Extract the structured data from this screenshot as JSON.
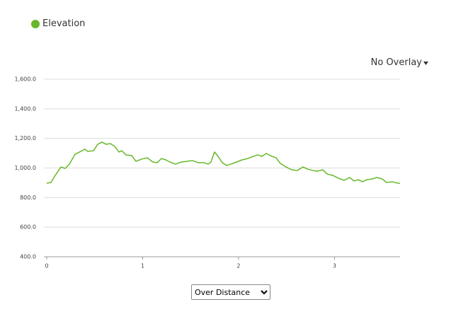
{
  "chart_data": {
    "type": "line",
    "series": [
      {
        "name": "Elevation",
        "color": "#66b82a",
        "x": [
          0,
          0.044,
          0.089,
          0.148,
          0.192,
          0.236,
          0.295,
          0.354,
          0.399,
          0.428,
          0.487,
          0.531,
          0.576,
          0.62,
          0.664,
          0.708,
          0.753,
          0.782,
          0.827,
          0.886,
          0.93,
          0.989,
          1.048,
          1.107,
          1.151,
          1.196,
          1.24,
          1.284,
          1.343,
          1.402,
          1.461,
          1.52,
          1.579,
          1.638,
          1.683,
          1.712,
          1.749,
          1.786,
          1.83,
          1.875,
          1.919,
          1.978,
          2.037,
          2.096,
          2.155,
          2.199,
          2.244,
          2.288,
          2.347,
          2.391,
          2.435,
          2.494,
          2.553,
          2.612,
          2.672,
          2.716,
          2.775,
          2.819,
          2.878,
          2.923,
          2.982,
          3.041,
          3.1,
          3.159,
          3.203,
          3.247,
          3.292,
          3.336,
          3.395,
          3.439,
          3.498,
          3.542,
          3.601,
          3.661,
          3.683
        ],
        "values": [
          897,
          902,
          950,
          1007,
          997,
          1026,
          1093,
          1112,
          1127,
          1112,
          1117,
          1160,
          1175,
          1160,
          1165,
          1146,
          1108,
          1117,
          1088,
          1084,
          1045,
          1060,
          1069,
          1040,
          1036,
          1064,
          1055,
          1040,
          1026,
          1040,
          1045,
          1050,
          1036,
          1036,
          1026,
          1040,
          1108,
          1079,
          1036,
          1017,
          1026,
          1040,
          1055,
          1064,
          1079,
          1088,
          1079,
          1098,
          1079,
          1069,
          1031,
          1007,
          988,
          983,
          1007,
          993,
          983,
          978,
          988,
          959,
          950,
          931,
          917,
          936,
          912,
          921,
          907,
          921,
          926,
          936,
          926,
          902,
          907,
          897,
          897
        ]
      }
    ],
    "xlim": [
      0,
      3.683
    ],
    "xticks": [
      0,
      1,
      2,
      3
    ],
    "ylim": [
      400,
      1600
    ],
    "yticks": [
      {
        "value": 400,
        "label": "400.0"
      },
      {
        "value": 600,
        "label": "600.0"
      },
      {
        "value": 800,
        "label": "800.0"
      },
      {
        "value": 1000,
        "label": "1,000.0"
      },
      {
        "value": 1200,
        "label": "1,200.0"
      },
      {
        "value": 1400,
        "label": "1,400.0"
      },
      {
        "value": 1600,
        "label": "1,600.0"
      }
    ],
    "grid": true
  },
  "controls": {
    "overlay": "No Overlay",
    "mode": "Over Distance"
  }
}
